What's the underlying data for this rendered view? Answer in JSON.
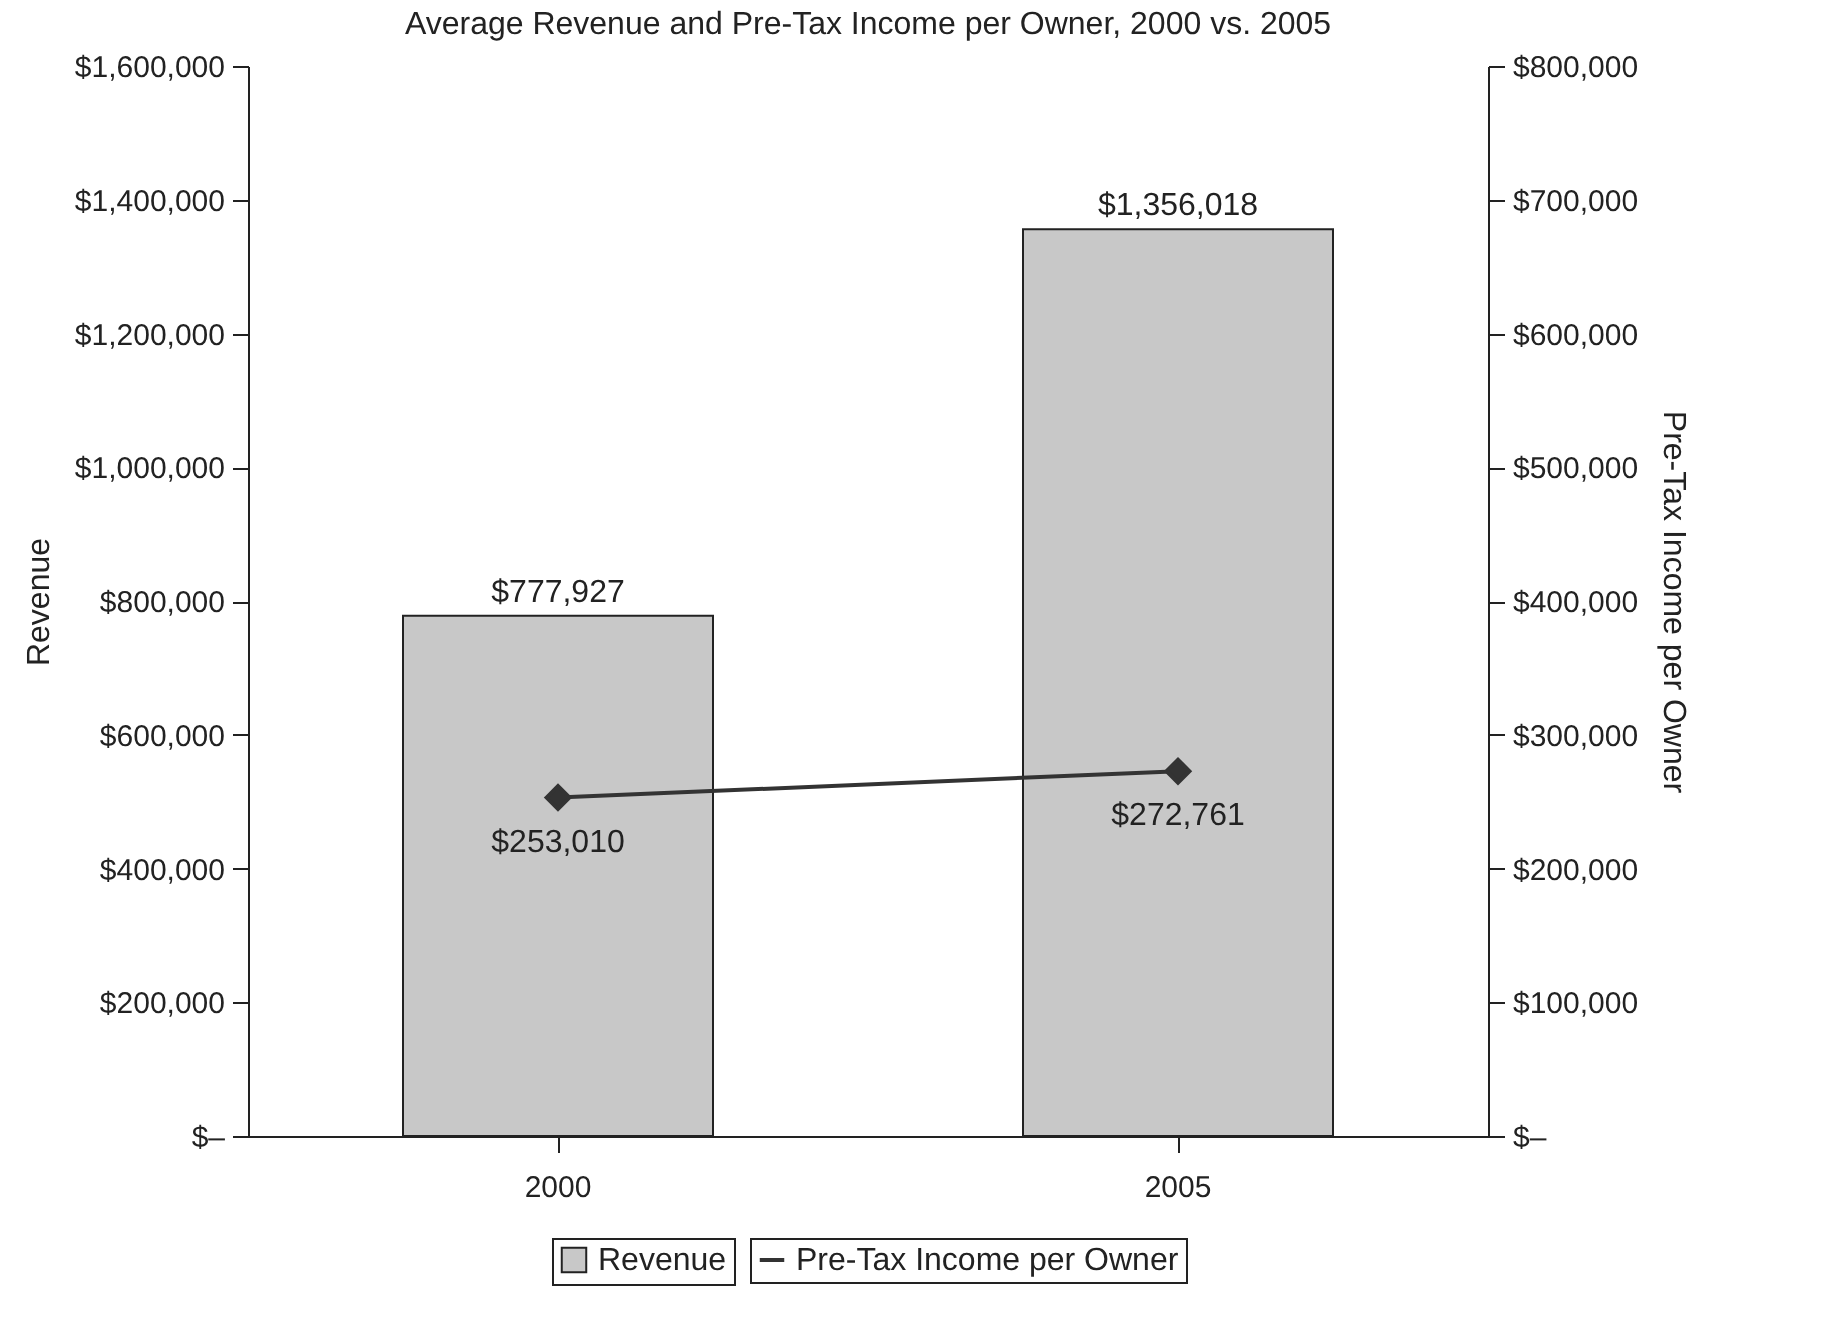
{
  "chart_data": {
    "type": "bar",
    "title": "Average Revenue and Pre-Tax Income per Owner, 2000 vs. 2005",
    "categories": [
      "2000",
      "2005"
    ],
    "ylabel": "Revenue",
    "y2label": "Pre-Tax Income per Owner",
    "series": [
      {
        "name": "Revenue",
        "color": "#c8c8c8",
        "values": [
          777927,
          1356018
        ],
        "value_labels": [
          "$777,927",
          "$1,356,018"
        ]
      },
      {
        "name": "Pre-Tax Income per Owner",
        "type": "line",
        "axis": "y2",
        "color": "#333333",
        "marker": "diamond",
        "values": [
          253010,
          272761
        ],
        "value_labels": [
          "$253,010",
          "$272,761"
        ]
      }
    ],
    "ylim": [
      0,
      1600000
    ],
    "yticks": [
      {
        "value": 0,
        "label": "$–"
      },
      {
        "value": 200000,
        "label": "$200,000"
      },
      {
        "value": 400000,
        "label": "$400,000"
      },
      {
        "value": 600000,
        "label": "$600,000"
      },
      {
        "value": 800000,
        "label": "$800,000"
      },
      {
        "value": 1000000,
        "label": "$1,000,000"
      },
      {
        "value": 1200000,
        "label": "$1,200,000"
      },
      {
        "value": 1400000,
        "label": "$1,400,000"
      },
      {
        "value": 1600000,
        "label": "$1,600,000"
      }
    ],
    "y2lim": [
      0,
      800000
    ],
    "y2ticks": [
      {
        "value": 0,
        "label": "$–"
      },
      {
        "value": 100000,
        "label": "$100,000"
      },
      {
        "value": 200000,
        "label": "$200,000"
      },
      {
        "value": 300000,
        "label": "$300,000"
      },
      {
        "value": 400000,
        "label": "$400,000"
      },
      {
        "value": 500000,
        "label": "$500,000"
      },
      {
        "value": 600000,
        "label": "$600,000"
      },
      {
        "value": 700000,
        "label": "$700,000"
      },
      {
        "value": 800000,
        "label": "$800,000"
      }
    ],
    "grid": false,
    "legend": "bottom"
  }
}
